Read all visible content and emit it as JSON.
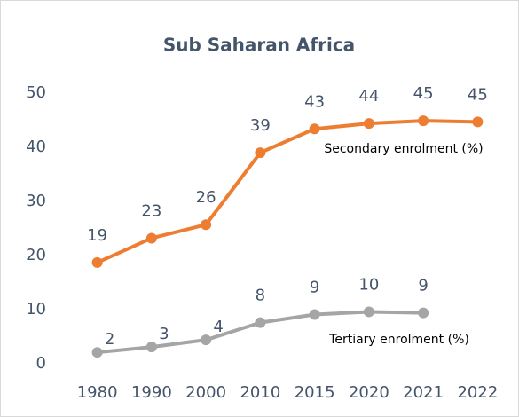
{
  "chart_data": {
    "type": "line",
    "title": "Sub Saharan Africa",
    "categories": [
      "1980",
      "1990",
      "2000",
      "2010",
      "2015",
      "2020",
      "2021",
      "2022"
    ],
    "series": [
      {
        "name": "Secondary enrolment (%)",
        "color": "#ed7d31",
        "values": [
          18.7,
          23.2,
          25.7,
          39,
          43.4,
          44.4,
          44.9,
          44.7
        ],
        "value_labels": [
          "19",
          "23",
          "26",
          "39",
          "43",
          "44",
          "45",
          "45"
        ]
      },
      {
        "name": "Tertiary enrolment (%)",
        "color": "#a5a5a5",
        "values": [
          2.1,
          3.1,
          4.4,
          7.6,
          9.1,
          9.6,
          9.4,
          null
        ],
        "value_labels": [
          "2",
          "3",
          "4",
          "8",
          "9",
          "10",
          "9",
          null
        ]
      }
    ],
    "ylim": [
      0,
      50
    ],
    "yticks": [
      0,
      10,
      20,
      30,
      40,
      50
    ],
    "grid": false
  }
}
